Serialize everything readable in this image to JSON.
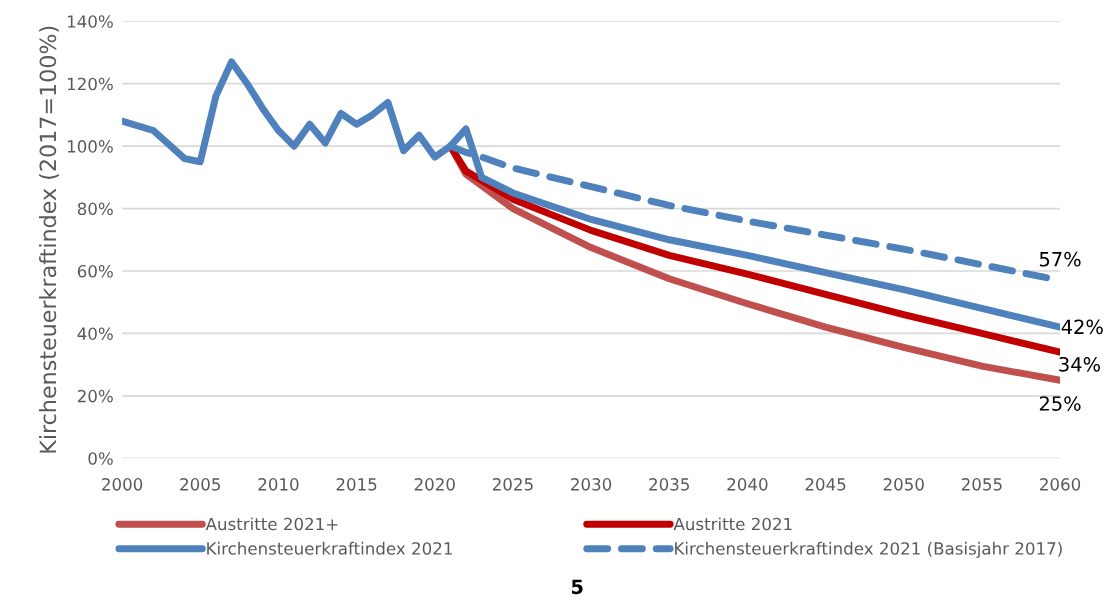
{
  "chart_data": {
    "type": "line",
    "ylabel": "Kirchensteuerkraftindex (2017=100%)",
    "xlim": [
      2000,
      2060
    ],
    "xticks": [
      2000,
      2005,
      2010,
      2015,
      2020,
      2025,
      2030,
      2035,
      2040,
      2045,
      2050,
      2055,
      2060
    ],
    "ylim": [
      0,
      140
    ],
    "yticks": [
      {
        "value": 0,
        "label": "0%"
      },
      {
        "value": 20,
        "label": "20%"
      },
      {
        "value": 40,
        "label": "40%"
      },
      {
        "value": 60,
        "label": "60%"
      },
      {
        "value": 80,
        "label": "80%"
      },
      {
        "value": 100,
        "label": "100%"
      },
      {
        "value": 120,
        "label": "120%"
      },
      {
        "value": 140,
        "label": "140%"
      }
    ],
    "grid": "y",
    "legend": "bottom",
    "marker": "none",
    "series": [
      {
        "name": "Austritte 2021+",
        "color": "#c0504d",
        "x": [
          2021,
          2022,
          2025,
          2030,
          2035,
          2040,
          2045,
          2050,
          2055,
          2060
        ],
        "values": [
          100,
          91,
          80,
          67.5,
          57.5,
          49.5,
          42,
          35.5,
          29.5,
          25
        ]
      },
      {
        "name": "Austritte 2021",
        "color": "#c00000",
        "x": [
          2021,
          2022,
          2025,
          2030,
          2035,
          2040,
          2045,
          2050,
          2055,
          2060
        ],
        "values": [
          100,
          92,
          83,
          73,
          65,
          59,
          52.5,
          46,
          40,
          34
        ]
      },
      {
        "name": "Kirchensteuerkraftindex 2021",
        "color": "#4f81bd",
        "x": [
          2000,
          2002,
          2004,
          2005,
          2006,
          2007,
          2008,
          2009,
          2010,
          2011,
          2012,
          2013,
          2014,
          2015,
          2016,
          2017,
          2018,
          2019,
          2020,
          2021,
          2022,
          2023,
          2025,
          2030,
          2035,
          2040,
          2045,
          2050,
          2055,
          2060
        ],
        "values": [
          108,
          105,
          96,
          95,
          116,
          127,
          120,
          112,
          105,
          100,
          107,
          101,
          110.5,
          107,
          110,
          114,
          98.5,
          103.5,
          96.5,
          100,
          105.5,
          90,
          85,
          76.5,
          70,
          65,
          59.5,
          54,
          48,
          42
        ]
      },
      {
        "name": "Kirchensteuerkraftindex 2021 (Basisjahr 2017)",
        "color": "#4f81bd",
        "line_style": "dashed",
        "x": [
          2021,
          2022,
          2023,
          2025,
          2030,
          2035,
          2040,
          2045,
          2050,
          2055,
          2060
        ],
        "values": [
          100,
          98,
          96.5,
          93,
          87,
          81,
          76,
          71.5,
          67,
          62,
          57
        ]
      }
    ],
    "annotations": [
      "57%",
      "42%",
      "34%",
      "25%",
      "5"
    ]
  }
}
